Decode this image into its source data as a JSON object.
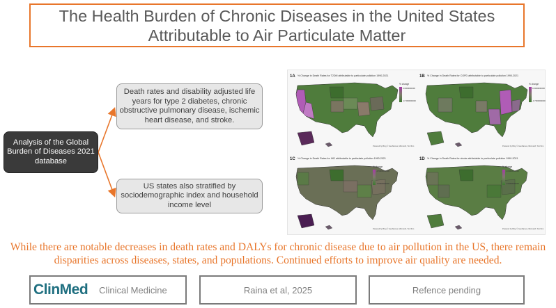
{
  "title": "The Health Burden of Chronic Diseases in the United States Attributable to Air Particulate Matter",
  "flow": {
    "source": "Analysis of the Global Burden of Diseases 2021 database",
    "detail": "Death rates and disability adjusted life years for type 2 diabetes, chronic obstructive pulmonary disease, ischemic heart disease, and stroke.",
    "stratification": "US states also stratified by sociodemographic index and household income level"
  },
  "maps": [
    {
      "label": "1A",
      "caption": "% Change in Death Rates for T2DM attributable to particulate pollution 1990-2021",
      "legend_title": "% change",
      "legend_high": "0.0000000000",
      "legend_low": "-0.7000000000",
      "legend_top": "#a83aa8",
      "legend_bottom": "#3f7a32"
    },
    {
      "label": "1B",
      "caption": "% Change in Death Rates for COPD attributable to particulate pollution 1990-2021",
      "legend_title": "% change",
      "legend_high": "0.0000000000",
      "legend_low": "-0.7000000000",
      "legend_top": "#a83aa8",
      "legend_bottom": "#3f7a32"
    },
    {
      "label": "1C",
      "caption": "% Change in Death Rates for IHD attributable to particulate pollution 1990-2021",
      "legend_title": "% change",
      "legend_high": "-0.5000000000",
      "legend_low": "-0.8000000000",
      "legend_top": "#a83aa8",
      "legend_bottom": "#3f7a32"
    },
    {
      "label": "1D",
      "caption": "% Change in Death Rates for stroke attributable to particulate pollution 1990-2021",
      "legend_title": "% change",
      "legend_high": "-0.6000000000",
      "legend_low": "-0.8000000000",
      "legend_top": "#a83aa8",
      "legend_bottom": "#3f7a32"
    }
  ],
  "map_source": "Powered by Bing © GeoNames, Microsoft, TomTom",
  "conclusion": "While there are notable decreases in death rates and DALYs for chronic disease due to air pollution in the US, there remain disparities across diseases, states, and populations. Continued efforts to improve air quality are needed.",
  "footer": {
    "logo": "ClinMed",
    "journal": "Clinical Medicine",
    "author": "Raina et al, 2025",
    "reference": "Refence pending"
  },
  "colors": {
    "accent": "#e8762b",
    "map_green": "#4f7c3c",
    "map_purple": "#a04ca6",
    "logo": "#1f6f80"
  }
}
